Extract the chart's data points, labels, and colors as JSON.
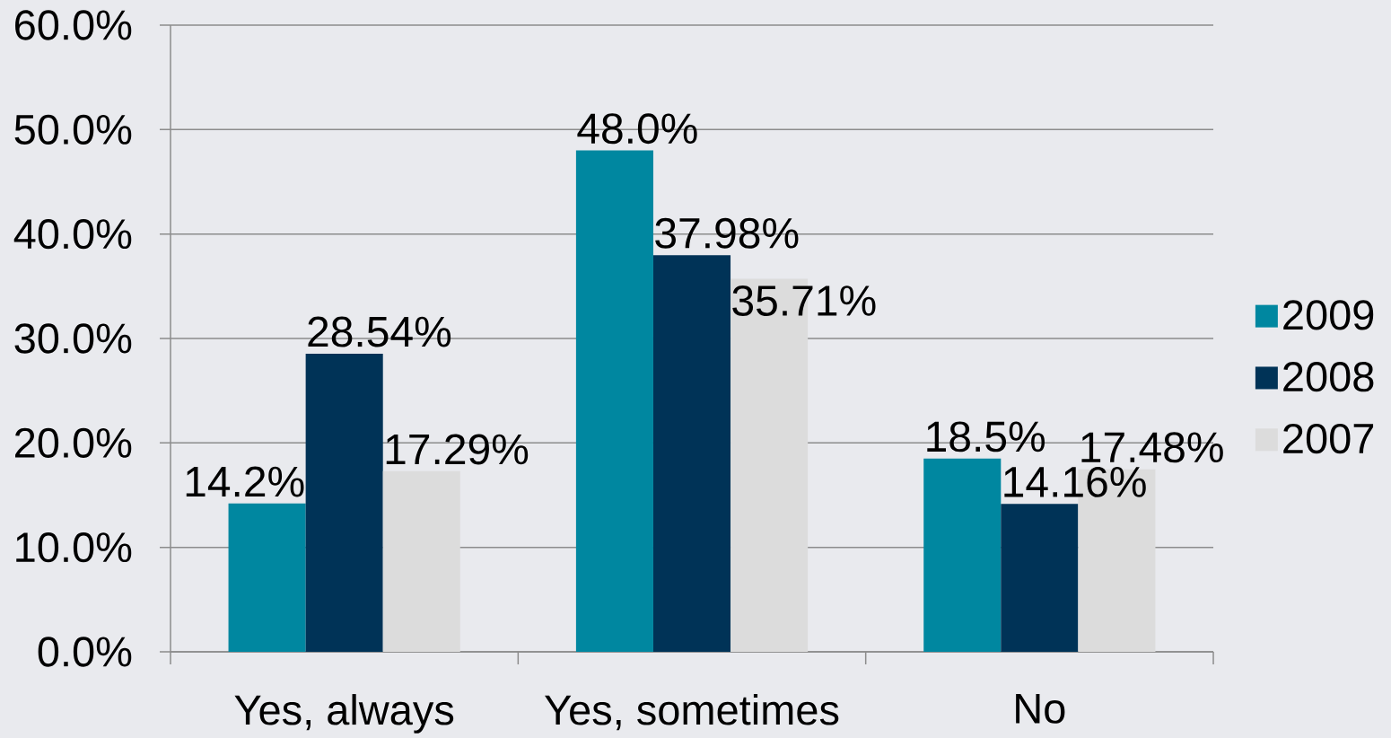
{
  "chart_data": {
    "type": "bar",
    "categories": [
      "Yes, always",
      "Yes, sometimes",
      "No"
    ],
    "series": [
      {
        "name": "2009",
        "color": "#0087a0",
        "values": [
          14.2,
          48.0,
          18.5
        ],
        "value_labels": [
          "14.2%",
          "48.0%",
          "18.5%"
        ]
      },
      {
        "name": "2008",
        "color": "#003357",
        "values": [
          28.54,
          37.98,
          14.16
        ],
        "value_labels": [
          "28.54%",
          "37.98%",
          "14.16%"
        ]
      },
      {
        "name": "2007",
        "color": "#dcdcdc",
        "values": [
          17.29,
          35.71,
          17.48
        ],
        "value_labels": [
          "17.29%",
          "35.71%",
          "17.48%"
        ]
      }
    ],
    "ylim": [
      0,
      60
    ],
    "yticks": [
      {
        "value": 0,
        "label": "0.0%"
      },
      {
        "value": 10,
        "label": "10.0%"
      },
      {
        "value": 20,
        "label": "20.0%"
      },
      {
        "value": 30,
        "label": "30.0%"
      },
      {
        "value": 40,
        "label": "40.0%"
      },
      {
        "value": 50,
        "label": "50.0%"
      },
      {
        "value": 60,
        "label": "60.0%"
      }
    ],
    "grid": "y",
    "legend": "right"
  }
}
